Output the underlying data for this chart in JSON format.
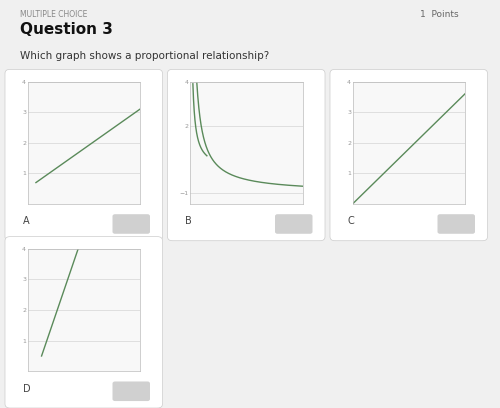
{
  "title": "Question 3",
  "subtitle": "Which graph shows a proportional relationship?",
  "multiple_choice_label": "MULTIPLE CHOICE",
  "points_label": "1  Points",
  "bg_color": "#f0f0f0",
  "card_bg": "#ffffff",
  "graph_bg": "#f8f8f8",
  "grid_color": "#cccccc",
  "line_color": "#5a8a5a",
  "tick_color": "#999999",
  "checkbox_color": "#d0d0d0",
  "graphs": [
    {
      "label": "A",
      "xlim": [
        0,
        4
      ],
      "ylim": [
        0,
        4
      ],
      "yticks": [
        1,
        2,
        3,
        4
      ],
      "xticks": [],
      "type": "linear_no_origin",
      "x": [
        0.3,
        4.0
      ],
      "y": [
        0.7,
        3.1
      ]
    },
    {
      "label": "B",
      "xlim": [
        0,
        4
      ],
      "ylim": [
        -1.5,
        4
      ],
      "yticks": [
        -1,
        2,
        4
      ],
      "xticks": [],
      "type": "hyperbola"
    },
    {
      "label": "C",
      "xlim": [
        0,
        4
      ],
      "ylim": [
        0,
        4
      ],
      "yticks": [
        1,
        2,
        3,
        4
      ],
      "xticks": [],
      "type": "linear_origin",
      "x": [
        0.0,
        4.0
      ],
      "y": [
        0.0,
        3.6
      ]
    },
    {
      "label": "D",
      "xlim": [
        0,
        4
      ],
      "ylim": [
        0,
        4
      ],
      "yticks": [
        1,
        2,
        3,
        4
      ],
      "xticks": [],
      "type": "steep_line",
      "x": [
        0.5,
        1.8
      ],
      "y": [
        0.5,
        4.0
      ]
    }
  ],
  "font_size_mc": 5.5,
  "font_size_title": 11,
  "font_size_subtitle": 7.5,
  "font_size_label": 7,
  "font_size_tick": 4.5
}
